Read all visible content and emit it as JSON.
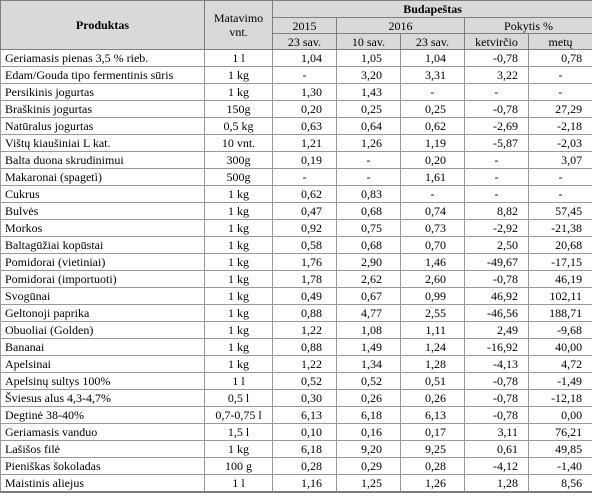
{
  "headers": {
    "product": "Produktas",
    "unit_line1": "Matavimo",
    "unit_line2": "vnt.",
    "region": "Budapeštas",
    "year2015": "2015",
    "year2016": "2016",
    "change": "Pokytis %",
    "wk23_2015": "23 sav.",
    "wk10_2016": "10 sav.",
    "wk23_2016": "23 sav.",
    "quarter": "ketvirčio",
    "year": "metų"
  },
  "rows": [
    {
      "name": "Geriamasis pienas 3,5 % rieb.",
      "unit": "1 l",
      "p2015": "1,04",
      "p10": "1,05",
      "p23": "1,04",
      "q": "-0,78",
      "y": "0,78"
    },
    {
      "name": "Edam/Gouda tipo fermentinis sūris",
      "unit": "1 kg",
      "p2015": "-",
      "p10": "3,20",
      "p23": "3,31",
      "q": "3,22",
      "y": "-"
    },
    {
      "name": "Persikinis jogurtas",
      "unit": "1 kg",
      "p2015": "1,30",
      "p10": "1,43",
      "p23": "-",
      "q": "-",
      "y": "-"
    },
    {
      "name": "Braškinis jogurtas",
      "unit": "150g",
      "p2015": "0,20",
      "p10": "0,25",
      "p23": "0,25",
      "q": "-0,78",
      "y": "27,29"
    },
    {
      "name": "Natūralus jogurtas",
      "unit": "0,5 kg",
      "p2015": "0,63",
      "p10": "0,64",
      "p23": "0,62",
      "q": "-2,69",
      "y": "-2,18"
    },
    {
      "name": "Vištų kiaušiniai L kat.",
      "unit": "10 vnt.",
      "p2015": "1,21",
      "p10": "1,26",
      "p23": "1,19",
      "q": "-5,87",
      "y": "-2,03"
    },
    {
      "name": "Balta duona skrudinimui",
      "unit": "300g",
      "p2015": "0,19",
      "p10": "-",
      "p23": "0,20",
      "q": "-",
      "y": "3,07"
    },
    {
      "name": "Makaronai (spagetì)",
      "unit": "500g",
      "p2015": "-",
      "p10": "-",
      "p23": "1,61",
      "q": "-",
      "y": "-"
    },
    {
      "name": "Cukrus",
      "unit": "1 kg",
      "p2015": "0,62",
      "p10": "0,83",
      "p23": "-",
      "q": "-",
      "y": "-"
    },
    {
      "name": "Bulvės",
      "unit": "1 kg",
      "p2015": "0,47",
      "p10": "0,68",
      "p23": "0,74",
      "q": "8,82",
      "y": "57,45"
    },
    {
      "name": "Morkos",
      "unit": "1 kg",
      "p2015": "0,92",
      "p10": "0,75",
      "p23": "0,73",
      "q": "-2,92",
      "y": "-21,38"
    },
    {
      "name": "Baltagūžiai kopūstai",
      "unit": "1 kg",
      "p2015": "0,58",
      "p10": "0,68",
      "p23": "0,70",
      "q": "2,50",
      "y": "20,68"
    },
    {
      "name": "Pomidorai (vietiniai)",
      "unit": "1 kg",
      "p2015": "1,76",
      "p10": "2,90",
      "p23": "1,46",
      "q": "-49,67",
      "y": "-17,15"
    },
    {
      "name": "Pomidorai (importuoti)",
      "unit": "1 kg",
      "p2015": "1,78",
      "p10": "2,62",
      "p23": "2,60",
      "q": "-0,78",
      "y": "46,19"
    },
    {
      "name": "Svogūnai",
      "unit": "1 kg",
      "p2015": "0,49",
      "p10": "0,67",
      "p23": "0,99",
      "q": "46,92",
      "y": "102,11"
    },
    {
      "name": "Geltonoji paprika",
      "unit": "1 kg",
      "p2015": "0,88",
      "p10": "4,77",
      "p23": "2,55",
      "q": "-46,56",
      "y": "188,71"
    },
    {
      "name": "Obuoliai (Golden)",
      "unit": "1 kg",
      "p2015": "1,22",
      "p10": "1,08",
      "p23": "1,11",
      "q": "2,49",
      "y": "-9,68"
    },
    {
      "name": "Bananai",
      "unit": "1 kg",
      "p2015": "0,88",
      "p10": "1,49",
      "p23": "1,24",
      "q": "-16,92",
      "y": "40,00"
    },
    {
      "name": "Apelsinai",
      "unit": "1 kg",
      "p2015": "1,22",
      "p10": "1,34",
      "p23": "1,28",
      "q": "-4,13",
      "y": "4,72"
    },
    {
      "name": "Apelsinų sultys 100%",
      "unit": "1 l",
      "p2015": "0,52",
      "p10": "0,52",
      "p23": "0,51",
      "q": "-0,78",
      "y": "-1,49"
    },
    {
      "name": "Šviesus alus 4,3-4,7%",
      "unit": "0,5 l",
      "p2015": "0,30",
      "p10": "0,26",
      "p23": "0,26",
      "q": "-0,78",
      "y": "-12,18"
    },
    {
      "name": "Degtinė 38-40%",
      "unit": "0,7-0,75 l",
      "p2015": "6,13",
      "p10": "6,18",
      "p23": "6,13",
      "q": "-0,78",
      "y": "0,00"
    },
    {
      "name": "Geriamasis vanduo",
      "unit": "1,5 l",
      "p2015": "0,10",
      "p10": "0,16",
      "p23": "0,17",
      "q": "3,11",
      "y": "76,21"
    },
    {
      "name": "Lašišos filė",
      "unit": "1 kg",
      "p2015": "6,18",
      "p10": "9,20",
      "p23": "9,25",
      "q": "0,61",
      "y": "49,85"
    },
    {
      "name": "Pieniškas šokoladas",
      "unit": "100 g",
      "p2015": "0,28",
      "p10": "0,29",
      "p23": "0,28",
      "q": "-4,12",
      "y": "-1,40"
    },
    {
      "name": "Maistinis aliejus",
      "unit": "1 l",
      "p2015": "1,16",
      "p10": "1,25",
      "p23": "1,26",
      "q": "1,28",
      "y": "8,56"
    }
  ]
}
